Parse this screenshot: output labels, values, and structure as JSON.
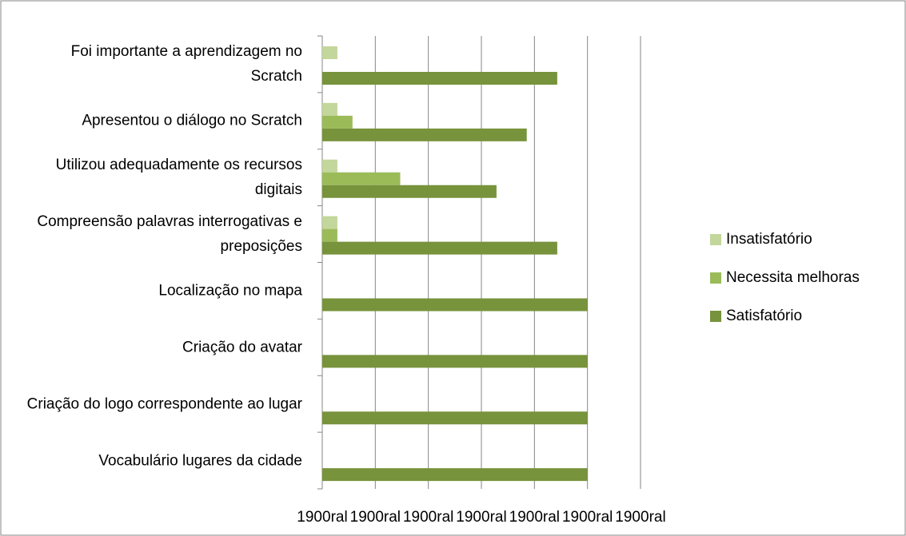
{
  "chart_data": {
    "type": "bar",
    "orientation": "horizontal",
    "categories": [
      "Foi importante a aprendizagem no Scratch",
      "Apresentou o diálogo no Scratch",
      "Utilizou adequadamente os recursos digitais",
      "Compreensão palavras interrogativas e preposições",
      "Localização no mapa",
      "Criação do avatar",
      "Criação do logo correspondente ao lugar",
      "Vocabulário lugares da cidade"
    ],
    "series": [
      {
        "name": "Insatisfatório",
        "color": "#c3d69b",
        "values": [
          5.7,
          5.7,
          5.7,
          5.7,
          0,
          0,
          0,
          0
        ]
      },
      {
        "name": "Necessita melhoras",
        "color": "#9bbb59",
        "values": [
          0,
          11.4,
          29.4,
          5.7,
          0,
          0,
          0,
          0
        ]
      },
      {
        "name": "Satisfatório",
        "color": "#77933c",
        "values": [
          88.6,
          77.1,
          65.7,
          88.6,
          100,
          100,
          100,
          100
        ]
      }
    ],
    "xlim": [
      0,
      120
    ],
    "xticks": [
      {
        "value": 0,
        "label": "1900ral"
      },
      {
        "value": 20,
        "label": "1900ral"
      },
      {
        "value": 40,
        "label": "1900ral"
      },
      {
        "value": 60,
        "label": "1900ral"
      },
      {
        "value": 80,
        "label": "1900ral"
      },
      {
        "value": 100,
        "label": "1900ral"
      },
      {
        "value": 120,
        "label": "1900ral"
      }
    ],
    "grid": true,
    "legend": "right"
  }
}
